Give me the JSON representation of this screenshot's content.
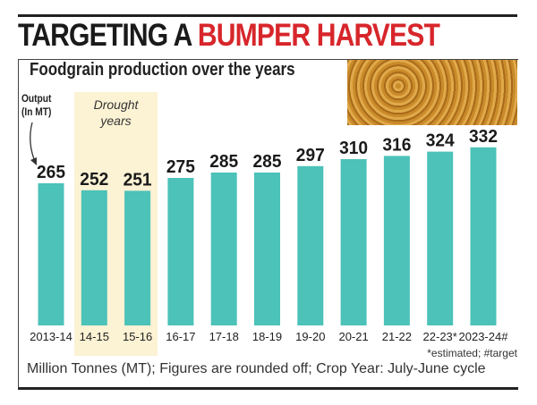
{
  "headline": {
    "part1": "TARGETING A ",
    "part2": "BUMPER HARVEST"
  },
  "subtitle": "Foodgrain production over the years",
  "output_label": [
    "Output",
    "(In MT)"
  ],
  "drought_label": [
    "Drought",
    "years"
  ],
  "colors": {
    "bar": "#4cc2b8",
    "highlight": "#fcf2d4",
    "accent": "#d7262b"
  },
  "footnote": "*estimated;  #target",
  "caption": "Million Tonnes (MT); Figures are rounded off; Crop Year: July-June cycle",
  "chart_data": {
    "type": "bar",
    "categories": [
      "2013-14",
      "14-15",
      "15-16",
      "16-17",
      "17-18",
      "18-19",
      "19-20",
      "20-21",
      "21-22",
      "22-23*",
      "2023-24#"
    ],
    "values": [
      265,
      252,
      251,
      275,
      285,
      285,
      297,
      310,
      316,
      324,
      332
    ],
    "ylabel": "Output (In MT)",
    "highlight": {
      "label": "Drought years",
      "categories": [
        "14-15",
        "15-16"
      ]
    },
    "grid": false
  }
}
